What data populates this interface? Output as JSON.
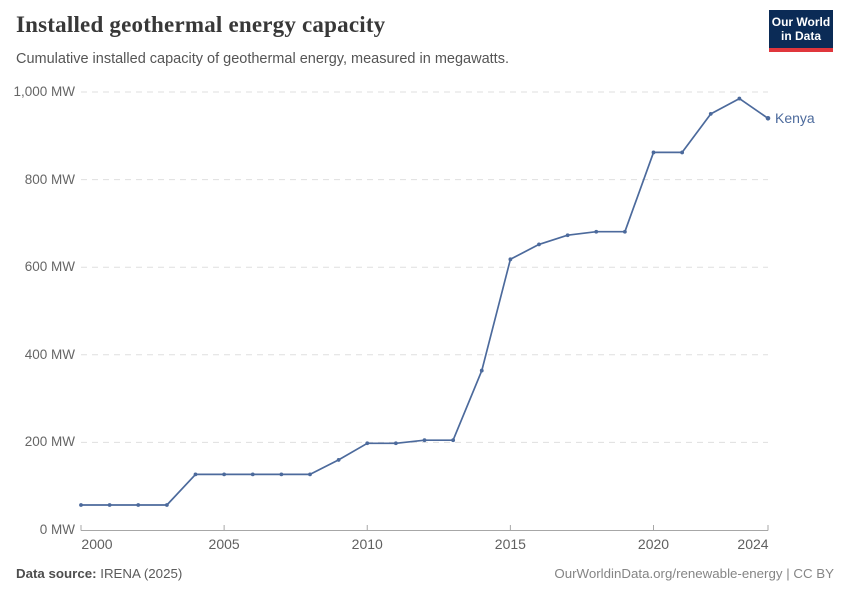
{
  "header": {
    "title": "Installed geothermal energy capacity",
    "subtitle": "Cumulative installed capacity of geothermal energy, measured in megawatts.",
    "logo": {
      "line1": "Our World",
      "line2": "in Data"
    }
  },
  "chart_data": {
    "type": "line",
    "title": "Installed geothermal energy capacity",
    "subtitle": "Cumulative installed capacity of geothermal energy, measured in megawatts.",
    "unit": "MW",
    "x": [
      2000,
      2001,
      2002,
      2003,
      2004,
      2005,
      2006,
      2007,
      2008,
      2009,
      2010,
      2011,
      2012,
      2013,
      2014,
      2015,
      2016,
      2017,
      2018,
      2019,
      2020,
      2021,
      2022,
      2023,
      2024
    ],
    "series": [
      {
        "name": "Kenya",
        "color": "#4C6A9C",
        "values": [
          57,
          57,
          57,
          57,
          127,
          127,
          127,
          127,
          127,
          160,
          198,
          198,
          205,
          205,
          364,
          618,
          652,
          673,
          681,
          681,
          862,
          862,
          950,
          985,
          940
        ]
      }
    ],
    "xlim": [
      2000,
      2024
    ],
    "ylim": [
      0,
      1000
    ],
    "y_ticks": [
      {
        "value": 0,
        "label": "0 MW"
      },
      {
        "value": 200,
        "label": "200 MW"
      },
      {
        "value": 400,
        "label": "400 MW"
      },
      {
        "value": 600,
        "label": "600 MW"
      },
      {
        "value": 800,
        "label": "800 MW"
      },
      {
        "value": 1000,
        "label": "1,000 MW"
      }
    ],
    "x_ticks": [
      {
        "value": 2000,
        "label": "2000"
      },
      {
        "value": 2005,
        "label": "2005"
      },
      {
        "value": 2010,
        "label": "2010"
      },
      {
        "value": 2015,
        "label": "2015"
      },
      {
        "value": 2020,
        "label": "2020"
      },
      {
        "value": 2024,
        "label": "2024"
      }
    ],
    "grid": "horizontal-dashed",
    "legend_position": "end-of-line-label"
  },
  "footer": {
    "source_label": "Data source:",
    "source_value": " IRENA (2025)",
    "credit": "OurWorldinData.org/renewable-energy | CC BY"
  },
  "colors": {
    "line": "#4C6A9C",
    "grid": "#dfdfdf",
    "axis": "#a7a7a7",
    "background": "#ffffff",
    "logo_bg": "#0b2b56",
    "logo_accent": "#e0363c"
  }
}
